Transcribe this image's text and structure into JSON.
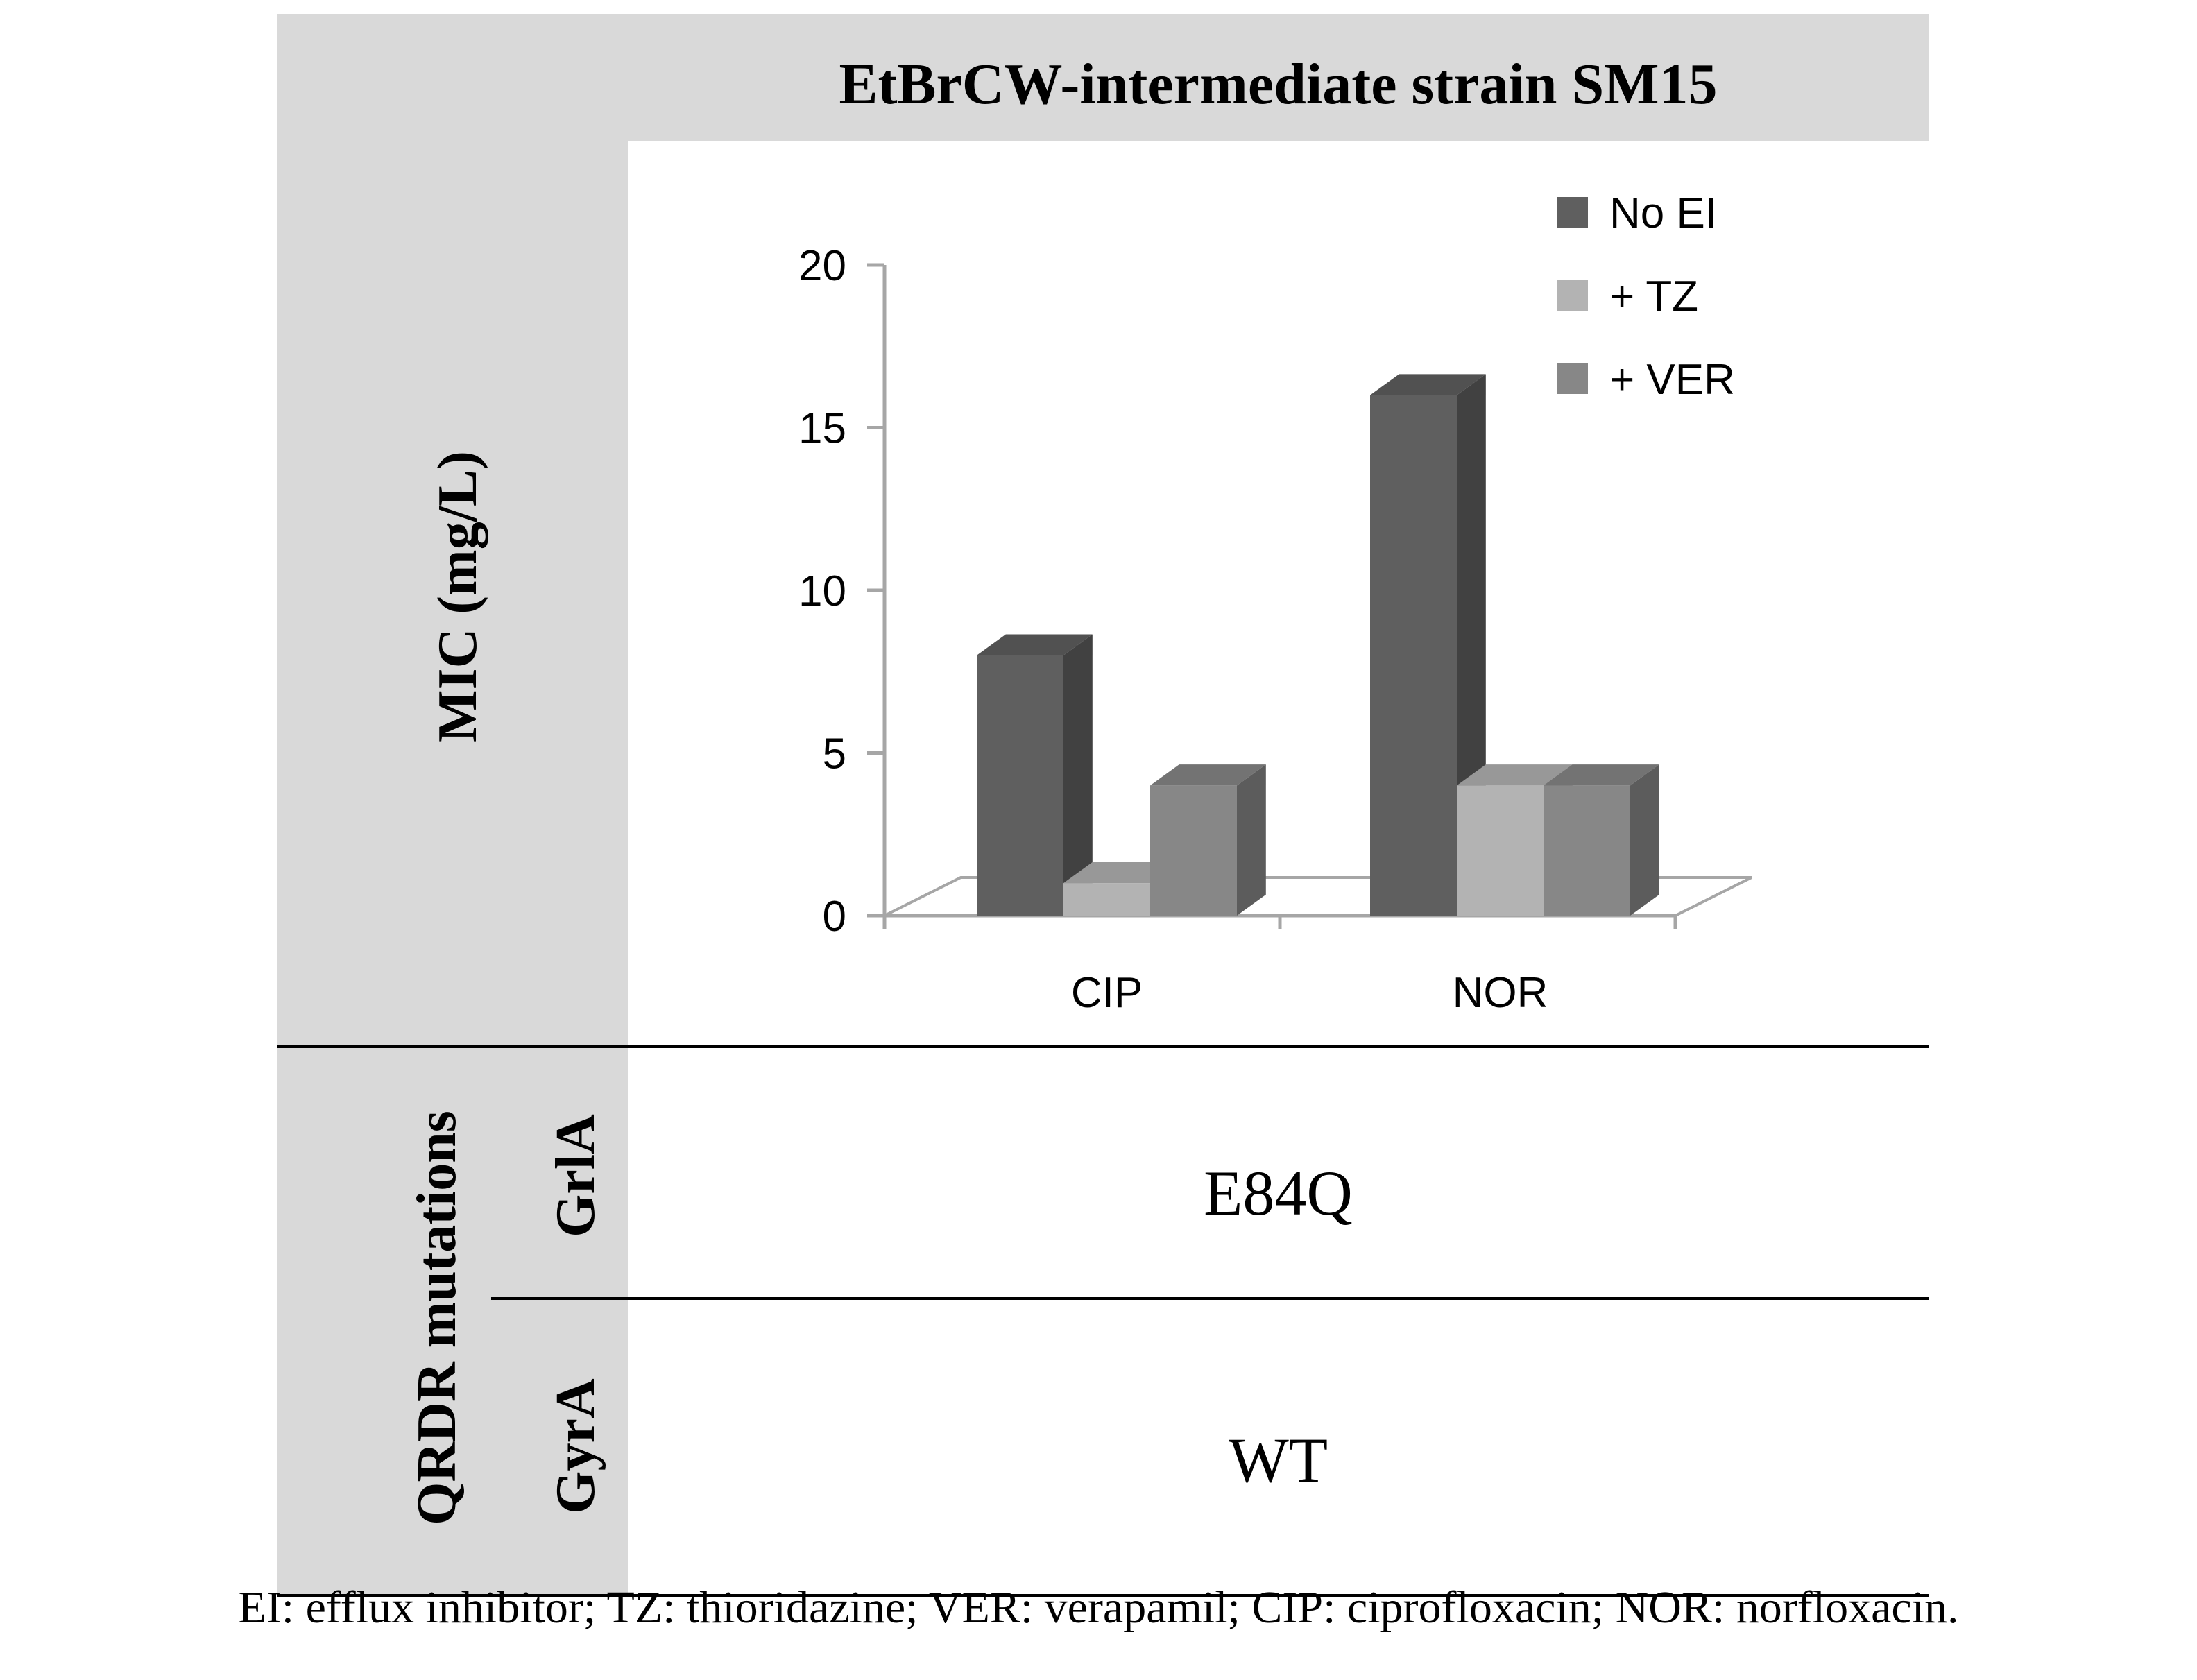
{
  "header": {
    "title": "EtBrCW-intermediate strain SM15"
  },
  "row_labels": {
    "mic": "MIC (mg/L)",
    "qrdr": "QRDR mutations",
    "grla": "GrlA",
    "gyra": "GyrA"
  },
  "mutations": {
    "grla": "E84Q",
    "gyra": "WT"
  },
  "caption": "EI: efflux inhibitor; TZ: thioridazine; VER: verapamil; CIP: ciprofloxacin; NOR: norfloxacin.",
  "chart_data": {
    "type": "bar",
    "style": "3d-clustered-column",
    "categories": [
      "CIP",
      "NOR"
    ],
    "series": [
      {
        "name": "No EI",
        "values": [
          8,
          16
        ],
        "color": "#5f5f5f"
      },
      {
        "name": "+ TZ",
        "values": [
          1,
          4
        ],
        "color": "#b3b3b3"
      },
      {
        "name": "+ VER",
        "values": [
          4,
          4
        ],
        "color": "#878787"
      }
    ],
    "yticks": [
      "0",
      "5",
      "10",
      "15",
      "20"
    ],
    "ylim": [
      0,
      20
    ],
    "xlabel": "",
    "ylabel": "MIC (mg/L)",
    "legend": "top-right",
    "grid": false
  }
}
